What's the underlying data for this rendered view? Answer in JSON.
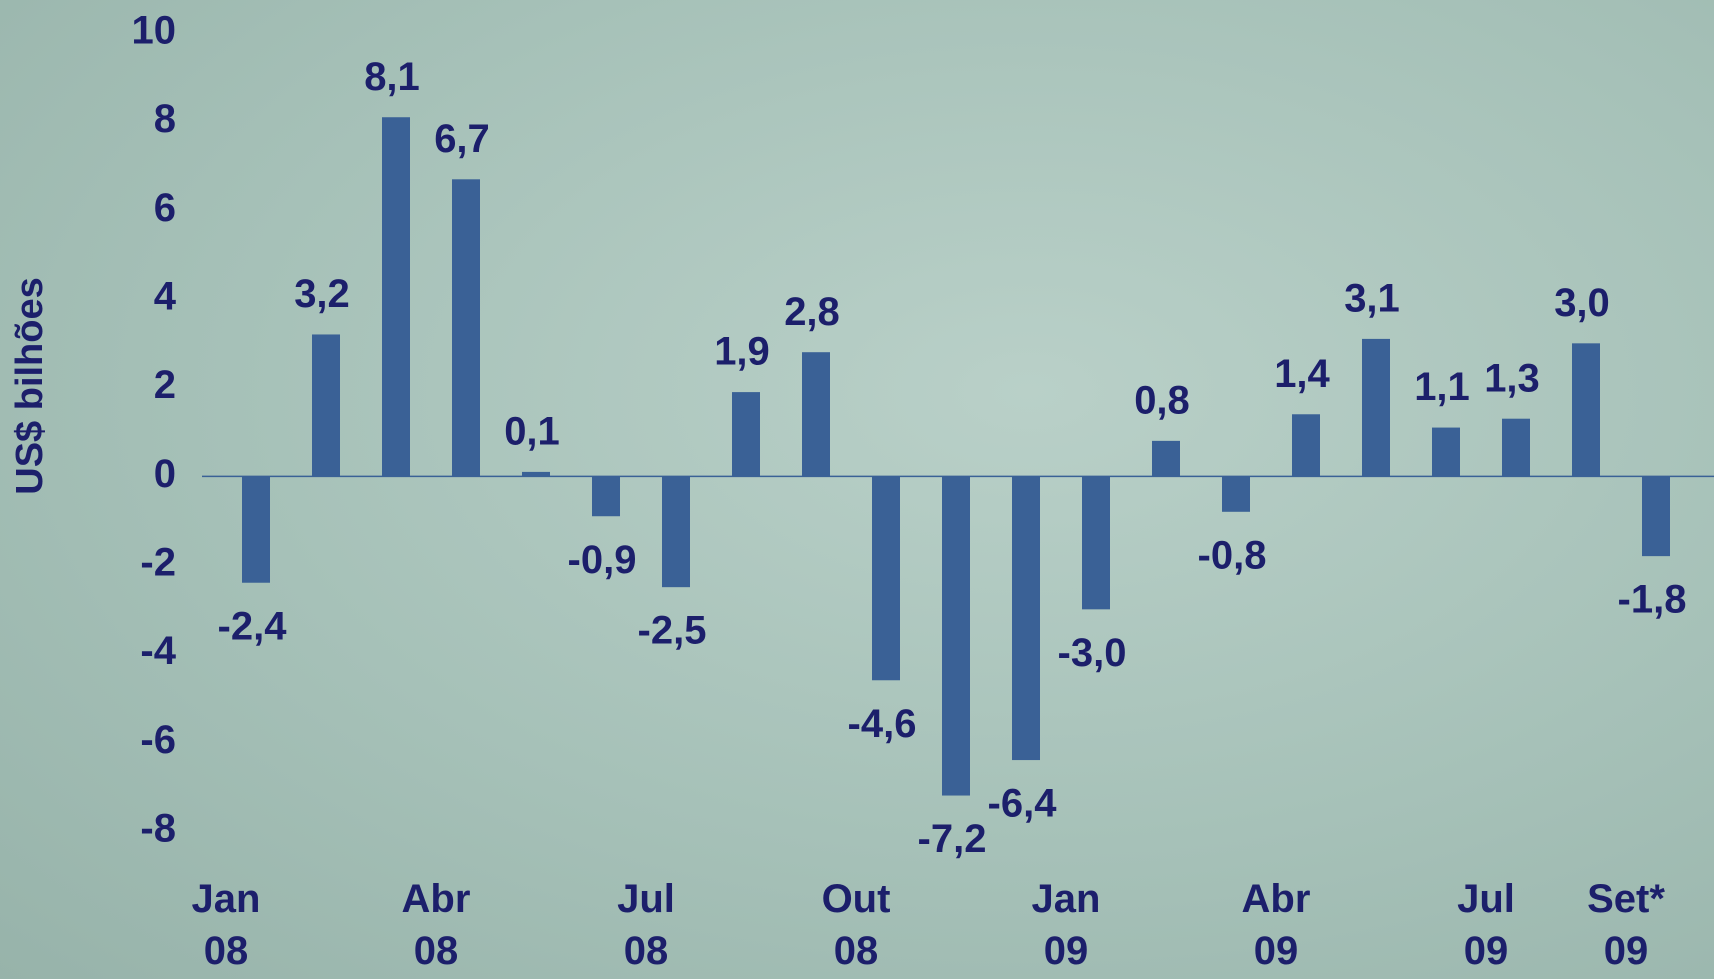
{
  "chart_data": {
    "type": "bar",
    "y_axis_label": "US$ bilhões",
    "categories": [
      "Jan 08",
      null,
      null,
      "Abr 08",
      null,
      null,
      "Jul 08",
      null,
      null,
      "Out 08",
      null,
      null,
      "Jan 09",
      null,
      null,
      "Abr 09",
      null,
      null,
      "Jul 09",
      null,
      "Set* 09"
    ],
    "values": [
      -2.4,
      3.2,
      8.1,
      6.7,
      0.1,
      -0.9,
      -2.5,
      1.9,
      2.8,
      -4.6,
      -7.2,
      -6.4,
      -3.0,
      0.8,
      -0.8,
      1.4,
      3.1,
      1.1,
      1.3,
      3.0,
      -1.8
    ],
    "value_labels": [
      "-2,4",
      "3,2",
      "8,1",
      "6,7",
      "0,1",
      "-0,9",
      "-2,5",
      "1,9",
      "2,8",
      "-4,6",
      "-7,2",
      "-6,4",
      "-3,0",
      "0,8",
      "-0,8",
      "1,4",
      "3,1",
      "1,1",
      "1,3",
      "3,0",
      "-1,8"
    ],
    "color": "#3a6196",
    "ylim": [
      -8,
      10
    ],
    "yticks": [
      -8,
      -6,
      -4,
      -2,
      0,
      2,
      4,
      6,
      8,
      10
    ]
  }
}
